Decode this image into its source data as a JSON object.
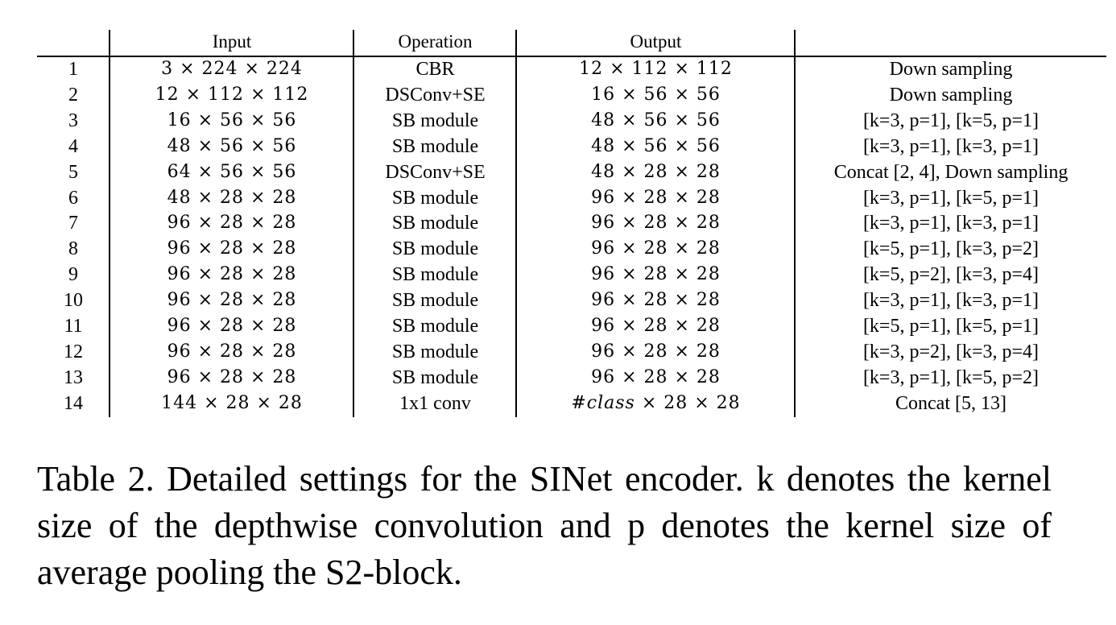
{
  "table": {
    "headers": {
      "index": "",
      "input": "Input",
      "operation": "Operation",
      "output": "Output",
      "note": ""
    },
    "rows": [
      {
        "index": "1",
        "input": "3 × 224 × 224",
        "operation": "CBR",
        "output": "12 × 112 × 112",
        "note": "Down sampling"
      },
      {
        "index": "2",
        "input": "12 × 112 × 112",
        "operation": "DSConv+SE",
        "output": "16 × 56 × 56",
        "note": "Down sampling"
      },
      {
        "index": "3",
        "input": "16 × 56 × 56",
        "operation": "SB module",
        "output": "48 × 56 × 56",
        "note": "[k=3, p=1], [k=5, p=1]"
      },
      {
        "index": "4",
        "input": "48 × 56 × 56",
        "operation": "SB module",
        "output": "48 × 56 × 56",
        "note": "[k=3, p=1], [k=3, p=1]"
      },
      {
        "index": "5",
        "input": "64 × 56 × 56",
        "operation": "DSConv+SE",
        "output": "48 × 28 × 28",
        "note": "Concat [2, 4], Down sampling"
      },
      {
        "index": "6",
        "input": "48 × 28 × 28",
        "operation": "SB module",
        "output": "96 × 28 × 28",
        "note": "[k=3, p=1], [k=5, p=1]"
      },
      {
        "index": "7",
        "input": "96 × 28 × 28",
        "operation": "SB module",
        "output": "96 × 28 × 28",
        "note": "[k=3, p=1], [k=3, p=1]"
      },
      {
        "index": "8",
        "input": "96 × 28 × 28",
        "operation": "SB module",
        "output": "96 × 28 × 28",
        "note": "[k=5, p=1], [k=3, p=2]"
      },
      {
        "index": "9",
        "input": "96 × 28 × 28",
        "operation": "SB module",
        "output": "96 × 28 × 28",
        "note": "[k=5, p=2], [k=3, p=4]"
      },
      {
        "index": "10",
        "input": "96 × 28 × 28",
        "operation": "SB module",
        "output": "96 × 28 × 28",
        "note": "[k=3, p=1], [k=3, p=1]"
      },
      {
        "index": "11",
        "input": "96 × 28 × 28",
        "operation": "SB module",
        "output": "96 × 28 × 28",
        "note": "[k=5, p=1], [k=5, p=1]"
      },
      {
        "index": "12",
        "input": "96 × 28 × 28",
        "operation": "SB module",
        "output": "96 × 28 × 28",
        "note": "[k=3, p=2], [k=3, p=4]"
      },
      {
        "index": "13",
        "input": "96 × 28 × 28",
        "operation": "SB module",
        "output": "96 × 28 × 28",
        "note": "[k=3, p=1], [k=5, p=2]"
      },
      {
        "index": "14",
        "input": "144 × 28 × 28",
        "operation": "1x1 conv",
        "output": "#class × 28 × 28",
        "note": "Concat [5, 13]"
      }
    ]
  },
  "caption": {
    "text": "Table 2. Detailed settings for the SINet encoder.  k denotes the kernel size of the depthwise convolution and p denotes the kernel size of average pooling the S2-block."
  }
}
